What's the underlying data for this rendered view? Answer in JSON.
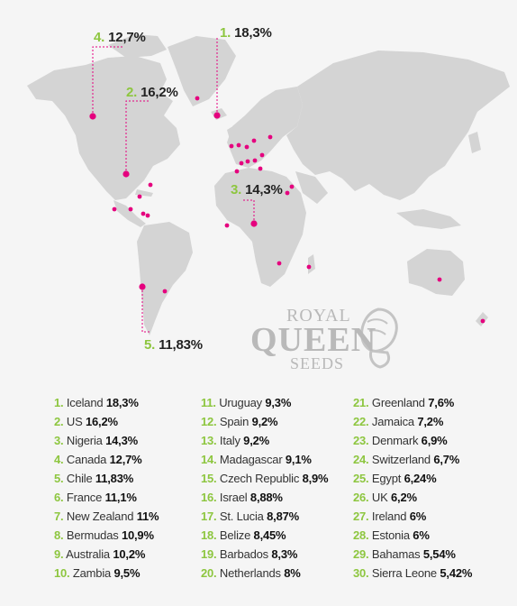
{
  "chart_data": {
    "type": "map",
    "callouts": [
      {
        "rank": "1.",
        "value": "18,3%"
      },
      {
        "rank": "2.",
        "value": "16,2%"
      },
      {
        "rank": "3.",
        "value": "14,3%"
      },
      {
        "rank": "4.",
        "value": "12,7%"
      },
      {
        "rank": "5.",
        "value": "11,83%"
      }
    ],
    "ranking": [
      {
        "rank": "1.",
        "country": "Iceland",
        "value": "18,3%"
      },
      {
        "rank": "2.",
        "country": "US",
        "value": "16,2%"
      },
      {
        "rank": "3.",
        "country": "Nigeria",
        "value": "14,3%"
      },
      {
        "rank": "4.",
        "country": "Canada",
        "value": "12,7%"
      },
      {
        "rank": "5.",
        "country": "Chile",
        "value": "11,83%"
      },
      {
        "rank": "6.",
        "country": "France",
        "value": "11,1%"
      },
      {
        "rank": "7.",
        "country": "New Zealand",
        "value": "11%"
      },
      {
        "rank": "8.",
        "country": "Bermudas",
        "value": "10,9%"
      },
      {
        "rank": "9.",
        "country": "Australia",
        "value": "10,2%"
      },
      {
        "rank": "10.",
        "country": "Zambia",
        "value": "9,5%"
      },
      {
        "rank": "11.",
        "country": "Uruguay",
        "value": "9,3%"
      },
      {
        "rank": "12.",
        "country": "Spain",
        "value": "9,2%"
      },
      {
        "rank": "13.",
        "country": "Italy",
        "value": "9,2%"
      },
      {
        "rank": "14.",
        "country": "Madagascar",
        "value": "9,1%"
      },
      {
        "rank": "15.",
        "country": "Czech Republic",
        "value": "8,9%"
      },
      {
        "rank": "16.",
        "country": "Israel",
        "value": "8,88%"
      },
      {
        "rank": "17.",
        "country": "St. Lucia",
        "value": "8,87%"
      },
      {
        "rank": "18.",
        "country": "Belize",
        "value": "8,45%"
      },
      {
        "rank": "19.",
        "country": "Barbados",
        "value": "8,3%"
      },
      {
        "rank": "20.",
        "country": "Netherlands",
        "value": "8%"
      },
      {
        "rank": "21.",
        "country": "Greenland",
        "value": "7,6%"
      },
      {
        "rank": "22.",
        "country": "Jamaica",
        "value": "7,2%"
      },
      {
        "rank": "23.",
        "country": "Denmark",
        "value": "6,9%"
      },
      {
        "rank": "24.",
        "country": "Switzerland",
        "value": "6,7%"
      },
      {
        "rank": "25.",
        "country": "Egypt",
        "value": "6,24%"
      },
      {
        "rank": "26.",
        "country": "UK",
        "value": "6,2%"
      },
      {
        "rank": "27.",
        "country": "Ireland",
        "value": "6%"
      },
      {
        "rank": "28.",
        "country": "Estonia",
        "value": "6%"
      },
      {
        "rank": "29.",
        "country": "Bahamas",
        "value": "5,54%"
      },
      {
        "rank": "30.",
        "country": "Sierra Leone",
        "value": "5,42%"
      }
    ]
  },
  "logo": {
    "line1": "ROYAL",
    "line2": "QUEEN",
    "line3": "SEEDS"
  },
  "colors": {
    "marker": "#e5007e",
    "rank": "#8dc63f",
    "land": "#d4d4d4",
    "leader": "#e5007e"
  }
}
